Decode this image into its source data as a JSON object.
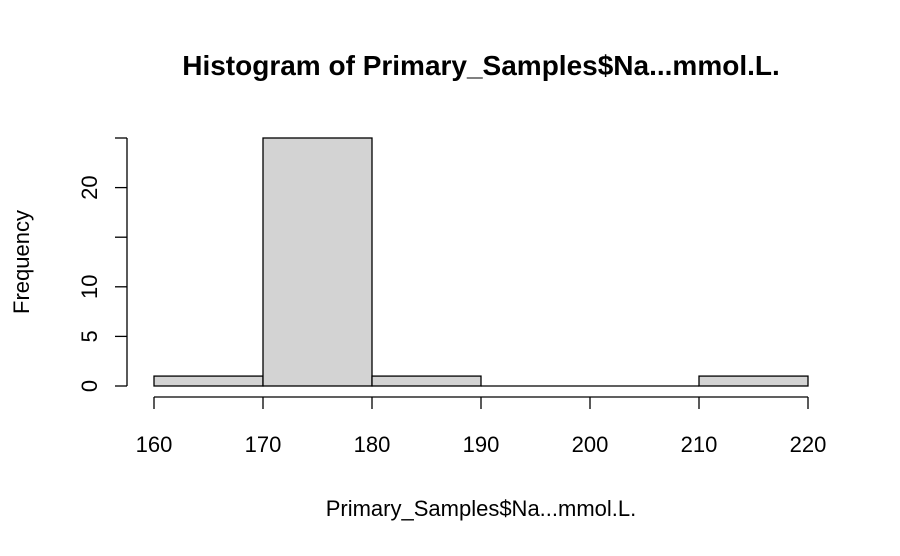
{
  "chart_data": {
    "type": "bar",
    "title": "Histogram of Primary_Samples$Na...mmol.L.",
    "xlabel": "Primary_Samples$Na...mmol.L.",
    "ylabel": "Frequency",
    "bins": [
      {
        "start": 160,
        "end": 170,
        "count": 1
      },
      {
        "start": 170,
        "end": 180,
        "count": 25
      },
      {
        "start": 180,
        "end": 190,
        "count": 1
      },
      {
        "start": 190,
        "end": 200,
        "count": 0
      },
      {
        "start": 200,
        "end": 210,
        "count": 0
      },
      {
        "start": 210,
        "end": 220,
        "count": 1
      }
    ],
    "x_ticks": [
      160,
      170,
      180,
      190,
      200,
      210,
      220
    ],
    "y_ticks": [
      0,
      5,
      10,
      15,
      20,
      25
    ],
    "y_tick_labels": [
      "0",
      "5",
      "10",
      "",
      "20",
      ""
    ],
    "xlim": [
      160,
      220
    ],
    "ylim": [
      0,
      25
    ],
    "bar_color": "#d3d3d3",
    "grid": false,
    "legend": "none"
  }
}
